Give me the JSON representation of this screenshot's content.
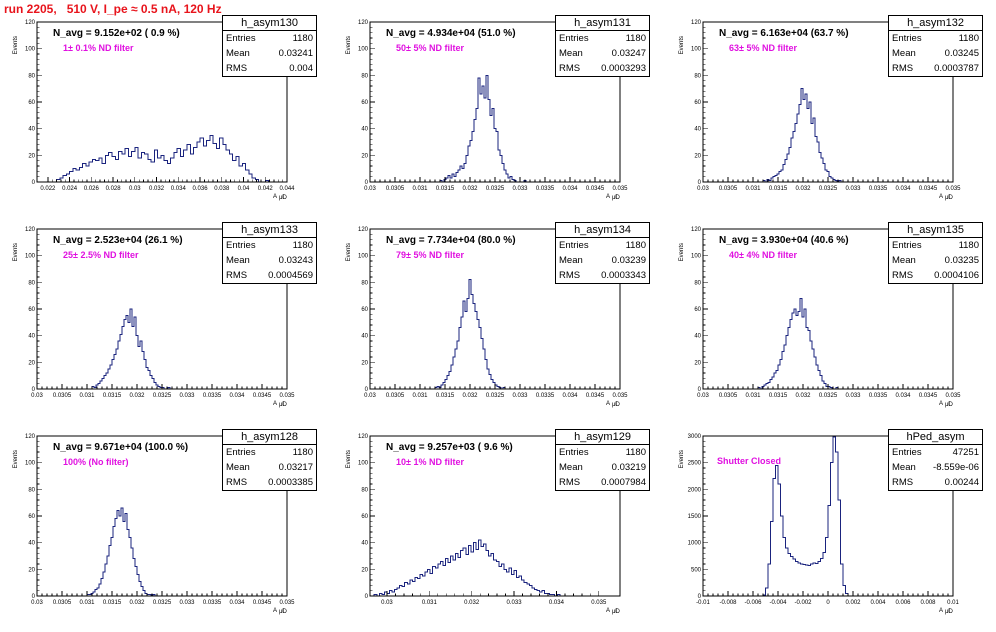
{
  "title": "run 2205,   510 V, I_pe ≈ 0.5 nA, 120 Hz",
  "ylabel": "Events",
  "xlabel": "A",
  "xlabel_sub": "μ̸D",
  "stat_labels": {
    "entries": "Entries",
    "mean": "Mean",
    "rms": "RMS"
  },
  "colors": {
    "title": "#e8141c",
    "annotation": "#e010e0",
    "hist": "#1a237e"
  },
  "chart_data": [
    {
      "type": "bar",
      "name": "h_asym130",
      "navg": "N_avg = 9.152e+02 ( 0.9 %)",
      "filter": "1± 0.1% ND filter",
      "entries": "1180",
      "mean": "0.03241",
      "rms": "0.004",
      "xlim": [
        0.021,
        0.044
      ],
      "ylim": [
        0,
        120
      ],
      "xticks": [
        0.022,
        0.024,
        0.026,
        0.028,
        0.03,
        0.032,
        0.034,
        0.036,
        0.038,
        0.04,
        0.042,
        0.044
      ],
      "xtick_labels": [
        "0.022",
        "0.024",
        "0.026",
        "0.028",
        "0.03",
        "0.032",
        "0.034",
        "0.036",
        "0.038",
        "0.04",
        "0.042",
        "0.044"
      ],
      "yticks": [
        0,
        20,
        40,
        60,
        80,
        100,
        120
      ],
      "bins": {
        "start": 0.0228,
        "width": 0.0003,
        "counts": [
          2,
          3,
          5,
          6,
          8,
          10,
          9,
          11,
          14,
          12,
          15,
          17,
          16,
          18,
          14,
          20,
          22,
          19,
          17,
          23,
          21,
          25,
          19,
          23,
          26,
          18,
          22,
          21,
          17,
          15,
          24,
          18,
          20,
          16,
          14,
          18,
          22,
          25,
          19,
          24,
          28,
          21,
          26,
          30,
          33,
          27,
          31,
          35,
          29,
          25,
          33,
          28,
          24,
          21,
          16,
          19,
          12,
          14,
          9,
          6,
          3,
          2,
          0,
          0,
          1,
          0,
          0,
          0,
          0
        ]
      }
    },
    {
      "type": "bar",
      "name": "h_asym131",
      "navg": "N_avg = 4.934e+04 (51.0 %)",
      "filter": "50± 5% ND filter",
      "entries": "1180",
      "mean": "0.03247",
      "rms": "0.0003293",
      "xlim": [
        0.03,
        0.035
      ],
      "ylim": [
        0,
        120
      ],
      "xticks": [
        0.03,
        0.0305,
        0.031,
        0.0315,
        0.032,
        0.0325,
        0.033,
        0.0335,
        0.034,
        0.0345,
        0.035
      ],
      "xtick_labels": [
        "0.03",
        "0.0305",
        "0.031",
        "0.0315",
        "0.032",
        "0.0325",
        "0.033",
        "0.0335",
        "0.034",
        "0.0345",
        "0.035"
      ],
      "yticks": [
        0,
        20,
        40,
        60,
        80,
        100,
        120
      ],
      "bins": {
        "start": 0.0314,
        "width": 4e-05,
        "counts": [
          1,
          0,
          2,
          3,
          5,
          3,
          6,
          4,
          7,
          9,
          12,
          10,
          14,
          20,
          27,
          31,
          38,
          47,
          55,
          78,
          66,
          72,
          63,
          80,
          62,
          50,
          55,
          40,
          38,
          24,
          20,
          14,
          9,
          6,
          3,
          4,
          2,
          1,
          0,
          0,
          0,
          0,
          1
        ]
      }
    },
    {
      "type": "bar",
      "name": "h_asym132",
      "navg": "N_avg = 6.163e+04 (63.7 %)",
      "filter": "63± 5% ND filter",
      "entries": "1180",
      "mean": "0.03245",
      "rms": "0.0003787",
      "xlim": [
        0.03,
        0.035
      ],
      "ylim": [
        0,
        120
      ],
      "xticks": [
        0.03,
        0.0305,
        0.031,
        0.0315,
        0.032,
        0.0325,
        0.033,
        0.0335,
        0.034,
        0.0345,
        0.035
      ],
      "xtick_labels": [
        "0.03",
        "0.0305",
        "0.031",
        "0.0315",
        "0.032",
        "0.0325",
        "0.033",
        "0.0335",
        "0.034",
        "0.0345",
        "0.035"
      ],
      "yticks": [
        0,
        20,
        40,
        60,
        80,
        100,
        120
      ],
      "bins": {
        "start": 0.0312,
        "width": 4e-05,
        "counts": [
          1,
          0,
          2,
          1,
          3,
          4,
          5,
          6,
          8,
          9,
          13,
          17,
          21,
          26,
          33,
          38,
          44,
          51,
          58,
          70,
          62,
          66,
          55,
          60,
          44,
          48,
          34,
          30,
          22,
          18,
          14,
          9,
          8,
          4,
          3,
          2,
          1,
          0,
          1,
          0,
          0,
          0,
          0,
          0,
          0,
          0
        ]
      }
    },
    {
      "type": "bar",
      "name": "h_asym133",
      "navg": "N_avg = 2.523e+04 (26.1 %)",
      "filter": "25± 2.5% ND filter",
      "entries": "1180",
      "mean": "0.03243",
      "rms": "0.0004569",
      "xlim": [
        0.03,
        0.035
      ],
      "ylim": [
        0,
        120
      ],
      "xticks": [
        0.03,
        0.0305,
        0.031,
        0.0315,
        0.032,
        0.0325,
        0.033,
        0.0335,
        0.034,
        0.0345,
        0.035
      ],
      "xtick_labels": [
        "0.03",
        "0.0305",
        "0.031",
        "0.0315",
        "0.032",
        "0.0325",
        "0.033",
        "0.0335",
        "0.034",
        "0.0345",
        "0.035"
      ],
      "yticks": [
        0,
        20,
        40,
        60,
        80,
        100,
        120
      ],
      "bins": {
        "start": 0.0311,
        "width": 4e-05,
        "counts": [
          2,
          1,
          3,
          4,
          6,
          8,
          10,
          12,
          15,
          18,
          22,
          26,
          30,
          36,
          41,
          47,
          52,
          55,
          50,
          60,
          47,
          54,
          40,
          32,
          36,
          28,
          22,
          16,
          14,
          10,
          8,
          5,
          3,
          2,
          1,
          1,
          0,
          0,
          1
        ]
      }
    },
    {
      "type": "bar",
      "name": "h_asym134",
      "navg": "N_avg = 7.734e+04 (80.0 %)",
      "filter": "79± 5% ND filter",
      "entries": "1180",
      "mean": "0.03239",
      "rms": "0.0003343",
      "xlim": [
        0.03,
        0.035
      ],
      "ylim": [
        0,
        120
      ],
      "xticks": [
        0.03,
        0.0305,
        0.031,
        0.0315,
        0.032,
        0.0325,
        0.033,
        0.0335,
        0.034,
        0.0345,
        0.035
      ],
      "xtick_labels": [
        "0.03",
        "0.0305",
        "0.031",
        "0.0315",
        "0.032",
        "0.0325",
        "0.033",
        "0.0335",
        "0.034",
        "0.0345",
        "0.035"
      ],
      "yticks": [
        0,
        20,
        40,
        60,
        80,
        100,
        120
      ],
      "bins": {
        "start": 0.0313,
        "width": 4e-05,
        "counts": [
          1,
          2,
          1,
          3,
          5,
          7,
          10,
          13,
          18,
          24,
          30,
          36,
          46,
          54,
          66,
          58,
          68,
          82,
          71,
          64,
          58,
          52,
          46,
          38,
          30,
          22,
          15,
          11,
          7,
          5,
          3,
          2,
          1,
          0,
          1
        ]
      }
    },
    {
      "type": "bar",
      "name": "h_asym135",
      "navg": "N_avg = 3.930e+04 (40.6 %)",
      "filter": "40± 4% ND filter",
      "entries": "1180",
      "mean": "0.03235",
      "rms": "0.0004106",
      "xlim": [
        0.03,
        0.035
      ],
      "ylim": [
        0,
        120
      ],
      "xticks": [
        0.03,
        0.0305,
        0.031,
        0.0315,
        0.032,
        0.0325,
        0.033,
        0.0335,
        0.034,
        0.0345,
        0.035
      ],
      "xtick_labels": [
        "0.03",
        "0.0305",
        "0.031",
        "0.0315",
        "0.032",
        "0.0325",
        "0.033",
        "0.0335",
        "0.034",
        "0.0345",
        "0.035"
      ],
      "yticks": [
        0,
        20,
        40,
        60,
        80,
        100,
        120
      ],
      "bins": {
        "start": 0.0311,
        "width": 4e-05,
        "counts": [
          1,
          0,
          2,
          3,
          4,
          5,
          7,
          9,
          12,
          14,
          18,
          22,
          28,
          33,
          40,
          46,
          52,
          57,
          60,
          55,
          58,
          68,
          54,
          60,
          46,
          44,
          36,
          30,
          24,
          18,
          14,
          10,
          6,
          4,
          2,
          2,
          1,
          0,
          0,
          1,
          0,
          0
        ]
      }
    },
    {
      "type": "bar",
      "name": "h_asym128",
      "navg": "N_avg = 9.671e+04 (100.0 %)",
      "filter": "100% (No filter)",
      "entries": "1180",
      "mean": "0.03217",
      "rms": "0.0003385",
      "xlim": [
        0.03,
        0.035
      ],
      "ylim": [
        0,
        120
      ],
      "xticks": [
        0.03,
        0.0305,
        0.031,
        0.0315,
        0.032,
        0.0325,
        0.033,
        0.0335,
        0.034,
        0.0345,
        0.035
      ],
      "xtick_labels": [
        "0.03",
        "0.0305",
        "0.031",
        "0.0315",
        "0.032",
        "0.0325",
        "0.033",
        "0.0335",
        "0.034",
        "0.0345",
        "0.035"
      ],
      "yticks": [
        0,
        20,
        40,
        60,
        80,
        100,
        120
      ],
      "bins": {
        "start": 0.031,
        "width": 4e-05,
        "counts": [
          1,
          1,
          2,
          3,
          5,
          6,
          9,
          13,
          18,
          24,
          30,
          38,
          44,
          52,
          58,
          64,
          60,
          66,
          56,
          62,
          50,
          44,
          36,
          28,
          22,
          16,
          11,
          7,
          4,
          2,
          1,
          1,
          0,
          1
        ]
      }
    },
    {
      "type": "bar",
      "name": "h_asym129",
      "navg": "N_avg = 9.257e+03 ( 9.6 %)",
      "filter": "10± 1% ND filter",
      "entries": "1180",
      "mean": "0.03219",
      "rms": "0.0007984",
      "xlim": [
        0.0296,
        0.0355
      ],
      "ylim": [
        0,
        120
      ],
      "xticks": [
        0.03,
        0.031,
        0.032,
        0.033,
        0.034,
        0.035
      ],
      "xtick_labels": [
        "0.03",
        "0.031",
        "0.032",
        "0.033",
        "0.034",
        "0.035"
      ],
      "yticks": [
        0,
        20,
        40,
        60,
        80,
        100,
        120
      ],
      "bins": {
        "start": 0.0297,
        "width": 6e-05,
        "counts": [
          1,
          0,
          2,
          1,
          3,
          2,
          4,
          3,
          5,
          6,
          8,
          7,
          10,
          9,
          12,
          11,
          14,
          13,
          16,
          15,
          18,
          20,
          17,
          22,
          21,
          24,
          26,
          23,
          28,
          25,
          30,
          27,
          32,
          29,
          34,
          36,
          31,
          38,
          33,
          40,
          35,
          42,
          37,
          39,
          34,
          30,
          32,
          27,
          26,
          22,
          24,
          20,
          18,
          21,
          16,
          19,
          14,
          15,
          12,
          10,
          9,
          8,
          6,
          5,
          4,
          3,
          4,
          2,
          2,
          1,
          1,
          0,
          1,
          0,
          0,
          0,
          0,
          0
        ]
      }
    },
    {
      "type": "bar",
      "name": "hPed_asym",
      "navg": "",
      "filter": "Shutter Closed",
      "entries": "47251",
      "mean": "-8.559e-06",
      "rms": "0.00244",
      "xlim": [
        -0.01,
        0.01
      ],
      "ylim": [
        0,
        3000
      ],
      "xticks": [
        -0.01,
        -0.008,
        -0.006,
        -0.004,
        -0.002,
        0,
        0.002,
        0.004,
        0.006,
        0.008,
        0.01
      ],
      "xtick_labels": [
        "-0.01",
        "-0.008",
        "-0.006",
        "-0.004",
        "-0.002",
        "0",
        "0.002",
        "0.004",
        "0.006",
        "0.008",
        "0.01"
      ],
      "yticks": [
        0,
        500,
        1000,
        1500,
        2000,
        2500,
        3000
      ],
      "bins": {
        "start": -0.0052,
        "width": 0.0002,
        "counts": [
          20,
          150,
          600,
          1400,
          2200,
          2450,
          2100,
          1500,
          1100,
          900,
          800,
          740,
          690,
          650,
          620,
          600,
          590,
          580,
          570,
          600,
          620,
          610,
          650,
          700,
          820,
          1100,
          1700,
          2500,
          2980,
          2700,
          1800,
          600,
          200,
          50
        ]
      }
    }
  ]
}
